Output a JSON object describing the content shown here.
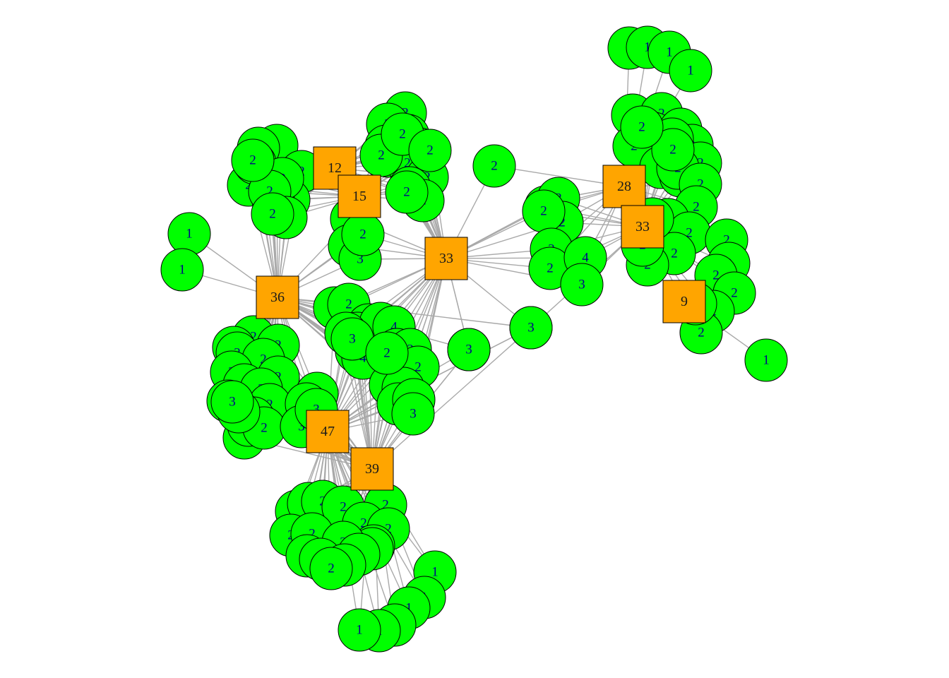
{
  "colors": {
    "hub_fill": "#ffa500",
    "leaf_fill": "#00ff00",
    "edge": "#a9a9a9",
    "leaf_text": "#00008b",
    "hub_text": "#1a1a1a"
  },
  "hubs": [
    {
      "id": "A",
      "label": "12"
    },
    {
      "id": "B",
      "label": "15"
    },
    {
      "id": "C",
      "label": "36"
    },
    {
      "id": "D",
      "label": "33"
    },
    {
      "id": "E",
      "label": "47"
    },
    {
      "id": "F",
      "label": "39"
    },
    {
      "id": "G",
      "label": "28"
    },
    {
      "id": "H",
      "label": "33"
    },
    {
      "id": "I",
      "label": "9"
    }
  ],
  "leaf_clusters": [
    {
      "id": "c1",
      "hubs": [
        "A",
        "B",
        "C"
      ],
      "labels": [
        "2",
        "2",
        "2",
        "2",
        "2",
        "2",
        "2",
        "2",
        "2",
        "2",
        "2",
        "2"
      ]
    },
    {
      "id": "c2",
      "hubs": [
        "A",
        "B",
        "D"
      ],
      "labels": [
        "2",
        "2",
        "2",
        "2",
        "2",
        "2",
        "2",
        "2",
        "2",
        "2",
        "2",
        "2",
        "2",
        "2"
      ]
    },
    {
      "id": "c3",
      "hubs": [
        "C"
      ],
      "labels": [
        "1",
        "1"
      ]
    },
    {
      "id": "c4",
      "hubs": [
        "B",
        "C",
        "D"
      ],
      "labels": [
        "3",
        "2",
        "3",
        "2"
      ]
    },
    {
      "id": "c5",
      "hubs": [
        "D",
        "E",
        "F",
        "C"
      ],
      "labels": [
        "2",
        "2",
        "2",
        "2",
        "2",
        "2",
        "2",
        "4",
        "4",
        "2",
        "2",
        "2",
        "2",
        "2",
        "3",
        "3",
        "3",
        "3",
        "3",
        "3",
        "2"
      ]
    },
    {
      "id": "c6",
      "hubs": [
        "C",
        "E",
        "F"
      ],
      "labels": [
        "2",
        "2",
        "2",
        "2",
        "2",
        "2",
        "2",
        "2",
        "2",
        "2",
        "2",
        "2",
        "2",
        "2",
        "2",
        "2",
        "2",
        "3",
        "3",
        "3",
        "3",
        "3"
      ]
    },
    {
      "id": "c7",
      "hubs": [
        "E",
        "F"
      ],
      "labels": [
        "2",
        "2",
        "2",
        "2",
        "2",
        "2",
        "2",
        "2",
        "2",
        "2",
        "2",
        "2",
        "2",
        "2",
        "2",
        "2",
        "2"
      ]
    },
    {
      "id": "c8",
      "hubs": [
        "F",
        "E"
      ],
      "labels": [
        "1",
        "1",
        "1",
        "1",
        "1",
        "1"
      ]
    },
    {
      "id": "c9",
      "hubs": [
        "D",
        "G",
        "H"
      ],
      "labels": [
        "2",
        "3",
        "2",
        "2",
        "2",
        "2",
        "4",
        "3"
      ]
    },
    {
      "id": "c10",
      "hubs": [
        "G",
        "H"
      ],
      "labels": [
        "2",
        "2",
        "2",
        "2",
        "2",
        "2",
        "2",
        "2",
        "2",
        "2",
        "2",
        "2",
        "2",
        "2",
        "2",
        "2",
        "2",
        "2",
        "2",
        "2",
        "2"
      ]
    },
    {
      "id": "c11",
      "hubs": [
        "G"
      ],
      "labels": [
        "1",
        "1",
        "1",
        "1"
      ]
    },
    {
      "id": "c12",
      "hubs": [
        "I",
        "H"
      ],
      "labels": [
        "2",
        "2",
        "2",
        "2",
        "2",
        "2",
        "2"
      ]
    },
    {
      "id": "c13",
      "hubs": [
        "I"
      ],
      "labels": [
        "1"
      ]
    },
    {
      "id": "c14",
      "hubs": [
        "D",
        "G"
      ],
      "labels": [
        "2"
      ]
    },
    {
      "id": "c15",
      "hubs": [
        "E",
        "H"
      ],
      "labels": [
        "3"
      ]
    },
    {
      "id": "c16",
      "hubs": [
        "D",
        "F"
      ],
      "labels": [
        "3"
      ]
    }
  ]
}
